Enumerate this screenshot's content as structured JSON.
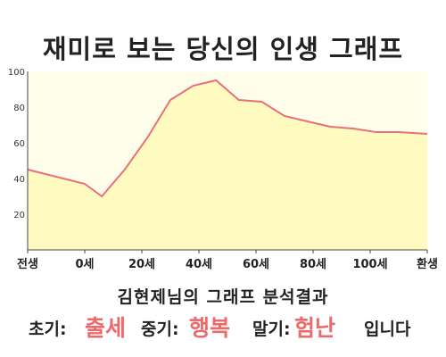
{
  "header": {
    "title": "재미로 보는 당신의 인생 그래프"
  },
  "chart_data": {
    "type": "area",
    "title": "재미로 보는 당신의 인생 그래프",
    "x_tick_labels": [
      "전생",
      "0세",
      "20세",
      "40세",
      "60세",
      "80세",
      "100세",
      "환생"
    ],
    "y_ticks": [
      100,
      80,
      60,
      40,
      20
    ],
    "ylim": [
      0,
      100
    ],
    "xlim": [
      -20,
      120
    ],
    "grid": false,
    "colors": {
      "fill": "#fffbc0",
      "line": "#e8707a",
      "plot_background": "#fffeea"
    },
    "series": [
      {
        "x": [
          -20,
          0,
          6,
          14,
          22,
          30,
          38,
          46,
          54,
          62,
          70,
          78,
          86,
          94,
          102,
          110,
          120
        ],
        "values": [
          45,
          37,
          30,
          45,
          63,
          84,
          92,
          95,
          84,
          83,
          75,
          72,
          69,
          68,
          66,
          66,
          65
        ]
      }
    ]
  },
  "result": {
    "caption": "김현제님의 그래프 분석결과",
    "early_label": "초기:",
    "early_value": "출세",
    "middle_label": "중기:",
    "middle_value": "행복",
    "late_label": "말기:",
    "late_value": "험난",
    "ending": "입니다"
  }
}
